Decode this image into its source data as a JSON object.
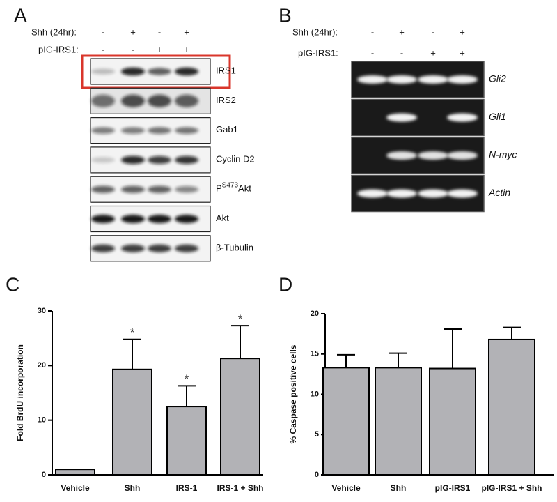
{
  "panels": {
    "a": {
      "letter": "A",
      "conditions": [
        {
          "label": "Shh (24hr):",
          "signs": [
            "-",
            "+",
            "-",
            "+"
          ]
        },
        {
          "label": "pIG-IRS1:",
          "signs": [
            "-",
            "-",
            "+",
            "+"
          ]
        }
      ],
      "rows": [
        {
          "label": "IRS1"
        },
        {
          "label": "IRS2"
        },
        {
          "label": "Gab1"
        },
        {
          "label": "Cyclin D2"
        },
        {
          "label": "P",
          "sup": "S473",
          "rest": "Akt"
        },
        {
          "label": "Akt"
        },
        {
          "label": "β-Tubulin"
        }
      ]
    },
    "b": {
      "letter": "B",
      "conditions": [
        {
          "label": "Shh (24hr):",
          "signs": [
            "-",
            "+",
            "-",
            "+"
          ]
        },
        {
          "label": "pIG-IRS1:",
          "signs": [
            "-",
            "-",
            "+",
            "+"
          ]
        }
      ],
      "rows": [
        {
          "label": "Gli2"
        },
        {
          "label": "Gli1"
        },
        {
          "label": "N-myc"
        },
        {
          "label": "Actin"
        }
      ]
    }
  },
  "chart_data": [
    {
      "type": "bar",
      "letter": "C",
      "y_label": "Fold BrdU incorporation",
      "categories": [
        "Vehicle",
        "Shh",
        "IRS-1",
        "IRS-1 + Shh"
      ],
      "values": [
        1,
        19.3,
        12.5,
        21.3
      ],
      "errors": [
        0,
        5.5,
        3.8,
        6.0
      ],
      "significance": [
        null,
        "*",
        "*",
        "*"
      ],
      "color": "#b2b2b6",
      "ylim": [
        0,
        30
      ],
      "yticks": [
        0,
        10,
        20,
        30
      ]
    },
    {
      "type": "bar",
      "letter": "D",
      "y_label": "% Caspase positive cells",
      "categories": [
        "Vehicle",
        "Shh",
        "pIG-IRS1",
        "pIG-IRS1 + Shh"
      ],
      "values": [
        13.3,
        13.3,
        13.2,
        16.8
      ],
      "errors": [
        1.6,
        1.8,
        4.9,
        1.5
      ],
      "color": "#b2b2b6",
      "ylim": [
        0,
        20
      ],
      "yticks": [
        0,
        5,
        10,
        15,
        20
      ]
    }
  ]
}
